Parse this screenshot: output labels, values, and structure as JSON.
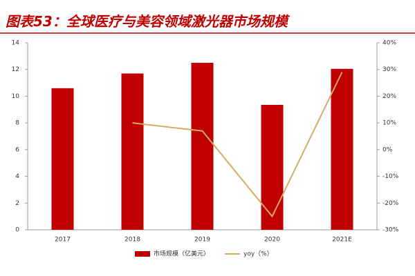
{
  "chart_data": {
    "type": "bar",
    "title": "图表53：全球医疗与美容领域激光器市场规模",
    "categories": [
      "2017",
      "2018",
      "2019",
      "2020",
      "2021E"
    ],
    "series": [
      {
        "name": "市场规模（亿美元）",
        "type": "bar",
        "color": "#c00000",
        "values": [
          10.6,
          11.7,
          12.5,
          9.35,
          12.05
        ]
      },
      {
        "name": "yoy（%）",
        "type": "line",
        "axis": "y2",
        "color": "#d4ab62",
        "values": [
          null,
          10,
          7,
          -25,
          29
        ]
      }
    ],
    "ylim": [
      0,
      14
    ],
    "yticks": [
      0,
      2,
      4,
      6,
      8,
      10,
      12,
      14
    ],
    "y2lim": [
      -30,
      40
    ],
    "y2ticks": [
      {
        "value": -30,
        "label": "-30%"
      },
      {
        "value": -20,
        "label": "-20%"
      },
      {
        "value": -10,
        "label": "-10%"
      },
      {
        "value": 0,
        "label": "0%"
      },
      {
        "value": 10,
        "label": "10%"
      },
      {
        "value": 20,
        "label": "20%"
      },
      {
        "value": 30,
        "label": "30%"
      },
      {
        "value": 40,
        "label": "40%"
      }
    ],
    "grid": false
  }
}
